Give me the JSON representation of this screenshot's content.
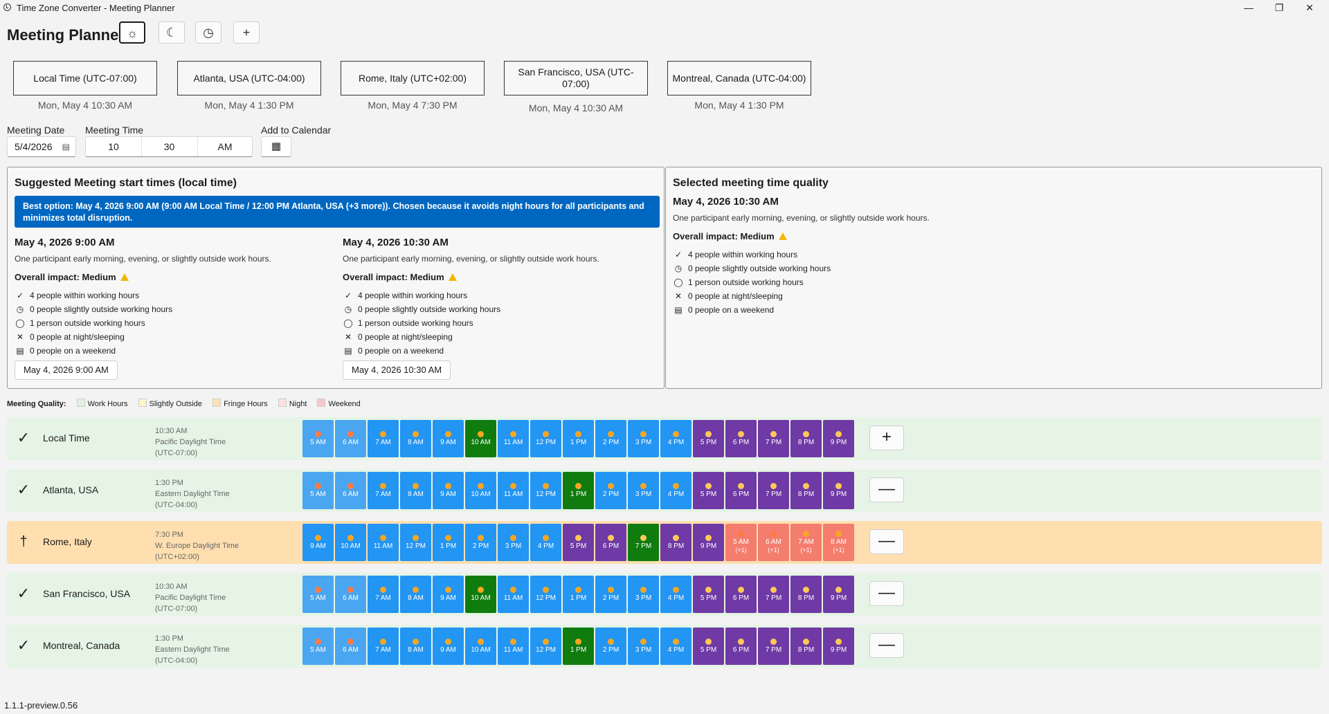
{
  "window": {
    "title": "Time Zone Converter - Meeting Planner"
  },
  "header": {
    "title": "Meeting Planner"
  },
  "zones": [
    {
      "label": "Local Time (UTC-07:00)",
      "time": "Mon, May 4  10:30 AM"
    },
    {
      "label": "Atlanta, USA (UTC-04:00)",
      "time": "Mon, May 4  1:30 PM"
    },
    {
      "label": "Rome, Italy (UTC+02:00)",
      "time": "Mon, May 4  7:30 PM"
    },
    {
      "label": "San Francisco, USA (UTC-07:00)",
      "time": "Mon, May 4  10:30 AM"
    },
    {
      "label": "Montreal, Canada (UTC-04:00)",
      "time": "Mon, May 4  1:30 PM"
    }
  ],
  "form": {
    "date_label": "Meeting Date",
    "date_value": "5/4/2026",
    "time_label": "Meeting Time",
    "hour": "10",
    "minute": "30",
    "ampm": "AM",
    "calendar_label": "Add to Calendar"
  },
  "suggested": {
    "title": "Suggested Meeting start times (local time)",
    "best_option": "Best option: May 4, 2026 9:00 AM (9:00 AM Local Time / 12:00 PM Atlanta, USA (+3 more)). Chosen because it avoids night hours for all participants and minimizes total disruption.",
    "options": [
      {
        "title": "May 4, 2026 9:00 AM",
        "desc": "One participant early morning, evening, or slightly outside work hours.",
        "impact": "Overall impact: Medium",
        "stats": [
          "4 people within working hours",
          "0 people slightly outside working hours",
          "1 person outside working hours",
          "0 people at night/sleeping",
          "0 people on a weekend"
        ],
        "button": "May 4, 2026 9:00 AM"
      },
      {
        "title": "May 4, 2026 10:30 AM",
        "desc": "One participant early morning, evening, or slightly outside work hours.",
        "impact": "Overall impact: Medium",
        "stats": [
          "4 people within working hours",
          "0 people slightly outside working hours",
          "1 person outside working hours",
          "0 people at night/sleeping",
          "0 people on a weekend"
        ],
        "button": "May 4, 2026 10:30 AM"
      }
    ]
  },
  "quality": {
    "title": "Selected meeting time quality",
    "subtitle": "May 4, 2026 10:30 AM",
    "desc": "One participant early morning, evening, or slightly outside work hours.",
    "impact": "Overall impact: Medium",
    "stats": [
      "4 people within working hours",
      "0 people slightly outside working hours",
      "1 person outside working hours",
      "0 people at night/sleeping",
      "0 people on a weekend"
    ]
  },
  "legend": {
    "label": "Meeting Quality:",
    "items": [
      {
        "label": "Work Hours",
        "color": "#dff3df"
      },
      {
        "label": "Slightly Outside",
        "color": "#fff6c8"
      },
      {
        "label": "Fringe Hours",
        "color": "#ffe2b3"
      },
      {
        "label": "Night",
        "color": "#fde0e0"
      },
      {
        "label": "Weekend",
        "color": "#f7c9c9"
      }
    ]
  },
  "rows": [
    {
      "name": "Local Time",
      "status": "check",
      "bg": "#e6f4e6",
      "time": "10:30 AM",
      "zone": "Pacific Daylight Time",
      "offset": "(UTC-07:00)",
      "button": "+",
      "cells": [
        [
          "5 AM",
          "",
          "e",
          "rise"
        ],
        [
          "6 AM",
          "",
          "e",
          "rise"
        ],
        [
          "7 AM",
          "",
          "w",
          "sun"
        ],
        [
          "8 AM",
          "",
          "w",
          "sun"
        ],
        [
          "9 AM",
          "",
          "w",
          "sun"
        ],
        [
          "10 AM",
          "",
          "s",
          "sun"
        ],
        [
          "11 AM",
          "",
          "w",
          "sun"
        ],
        [
          "12 PM",
          "",
          "w",
          "sun"
        ],
        [
          "1 PM",
          "",
          "w",
          "sun"
        ],
        [
          "2 PM",
          "",
          "w",
          "sun"
        ],
        [
          "3 PM",
          "",
          "w",
          "sun"
        ],
        [
          "4 PM",
          "",
          "w",
          "sun"
        ],
        [
          "5 PM",
          "",
          "n",
          "dusk"
        ],
        [
          "6 PM",
          "",
          "n",
          "dusk"
        ],
        [
          "7 PM",
          "",
          "n",
          "dusk"
        ],
        [
          "8 PM",
          "",
          "n",
          "dusk"
        ],
        [
          "9 PM",
          "",
          "n",
          "dusk"
        ]
      ]
    },
    {
      "name": "Atlanta, USA",
      "status": "check",
      "bg": "#e6f4e6",
      "time": "1:30 PM",
      "zone": "Eastern Daylight Time",
      "offset": "(UTC-04:00)",
      "button": "—",
      "cells": [
        [
          "5 AM",
          "",
          "e",
          "rise"
        ],
        [
          "6 AM",
          "",
          "e",
          "rise"
        ],
        [
          "7 AM",
          "",
          "w",
          "sun"
        ],
        [
          "8 AM",
          "",
          "w",
          "sun"
        ],
        [
          "9 AM",
          "",
          "w",
          "sun"
        ],
        [
          "10 AM",
          "",
          "w",
          "sun"
        ],
        [
          "11 AM",
          "",
          "w",
          "sun"
        ],
        [
          "12 PM",
          "",
          "w",
          "sun"
        ],
        [
          "1 PM",
          "",
          "s",
          "sun"
        ],
        [
          "2 PM",
          "",
          "w",
          "sun"
        ],
        [
          "3 PM",
          "",
          "w",
          "sun"
        ],
        [
          "4 PM",
          "",
          "w",
          "sun"
        ],
        [
          "5 PM",
          "",
          "n",
          "dusk"
        ],
        [
          "6 PM",
          "",
          "n",
          "dusk"
        ],
        [
          "7 PM",
          "",
          "n",
          "dusk"
        ],
        [
          "8 PM",
          "",
          "n",
          "dusk"
        ],
        [
          "9 PM",
          "",
          "n",
          "dusk"
        ]
      ]
    },
    {
      "name": "Rome, Italy",
      "status": "fringe",
      "bg": "#ffdfb0",
      "time": "7:30 PM",
      "zone": "W. Europe Daylight Time",
      "offset": "(UTC+02:00)",
      "button": "—",
      "cells": [
        [
          "9 AM",
          "",
          "w",
          "sun"
        ],
        [
          "10 AM",
          "",
          "w",
          "sun"
        ],
        [
          "11 AM",
          "",
          "w",
          "sun"
        ],
        [
          "12 PM",
          "",
          "w",
          "sun"
        ],
        [
          "1 PM",
          "",
          "w",
          "sun"
        ],
        [
          "2 PM",
          "",
          "w",
          "sun"
        ],
        [
          "3 PM",
          "",
          "w",
          "sun"
        ],
        [
          "4 PM",
          "",
          "w",
          "sun"
        ],
        [
          "5 PM",
          "",
          "n",
          "dusk"
        ],
        [
          "6 PM",
          "",
          "n",
          "dusk"
        ],
        [
          "7 PM",
          "",
          "s",
          "dusk"
        ],
        [
          "8 PM",
          "",
          "n",
          "dusk"
        ],
        [
          "9 PM",
          "",
          "n",
          "dusk"
        ],
        [
          "5 AM",
          "(+1)",
          "f",
          "rise"
        ],
        [
          "6 AM",
          "(+1)",
          "f",
          "rise"
        ],
        [
          "7 AM",
          "(+1)",
          "f",
          "sun"
        ],
        [
          "8 AM",
          "(+1)",
          "f",
          "sun"
        ]
      ]
    },
    {
      "name": "San Francisco, USA",
      "status": "check",
      "bg": "#e6f4e6",
      "time": "10:30 AM",
      "zone": "Pacific Daylight Time",
      "offset": "(UTC-07:00)",
      "button": "—",
      "cells": [
        [
          "5 AM",
          "",
          "e",
          "rise"
        ],
        [
          "6 AM",
          "",
          "e",
          "rise"
        ],
        [
          "7 AM",
          "",
          "w",
          "sun"
        ],
        [
          "8 AM",
          "",
          "w",
          "sun"
        ],
        [
          "9 AM",
          "",
          "w",
          "sun"
        ],
        [
          "10 AM",
          "",
          "s",
          "sun"
        ],
        [
          "11 AM",
          "",
          "w",
          "sun"
        ],
        [
          "12 PM",
          "",
          "w",
          "sun"
        ],
        [
          "1 PM",
          "",
          "w",
          "sun"
        ],
        [
          "2 PM",
          "",
          "w",
          "sun"
        ],
        [
          "3 PM",
          "",
          "w",
          "sun"
        ],
        [
          "4 PM",
          "",
          "w",
          "sun"
        ],
        [
          "5 PM",
          "",
          "n",
          "dusk"
        ],
        [
          "6 PM",
          "",
          "n",
          "dusk"
        ],
        [
          "7 PM",
          "",
          "n",
          "dusk"
        ],
        [
          "8 PM",
          "",
          "n",
          "dusk"
        ],
        [
          "9 PM",
          "",
          "n",
          "dusk"
        ]
      ]
    },
    {
      "name": "Montreal, Canada",
      "status": "check",
      "bg": "#e6f4e6",
      "time": "1:30 PM",
      "zone": "Eastern Daylight Time",
      "offset": "(UTC-04:00)",
      "button": "—",
      "cells": [
        [
          "5 AM",
          "",
          "e",
          "rise"
        ],
        [
          "6 AM",
          "",
          "e",
          "rise"
        ],
        [
          "7 AM",
          "",
          "w",
          "sun"
        ],
        [
          "8 AM",
          "",
          "w",
          "sun"
        ],
        [
          "9 AM",
          "",
          "w",
          "sun"
        ],
        [
          "10 AM",
          "",
          "w",
          "sun"
        ],
        [
          "11 AM",
          "",
          "w",
          "sun"
        ],
        [
          "12 PM",
          "",
          "w",
          "sun"
        ],
        [
          "1 PM",
          "",
          "s",
          "sun"
        ],
        [
          "2 PM",
          "",
          "w",
          "sun"
        ],
        [
          "3 PM",
          "",
          "w",
          "sun"
        ],
        [
          "4 PM",
          "",
          "w",
          "sun"
        ],
        [
          "5 PM",
          "",
          "n",
          "dusk"
        ],
        [
          "6 PM",
          "",
          "n",
          "dusk"
        ],
        [
          "7 PM",
          "",
          "n",
          "dusk"
        ],
        [
          "8 PM",
          "",
          "n",
          "dusk"
        ],
        [
          "9 PM",
          "",
          "n",
          "dusk"
        ]
      ]
    }
  ],
  "footer": {
    "version": "1.1.1-preview.0.56"
  }
}
